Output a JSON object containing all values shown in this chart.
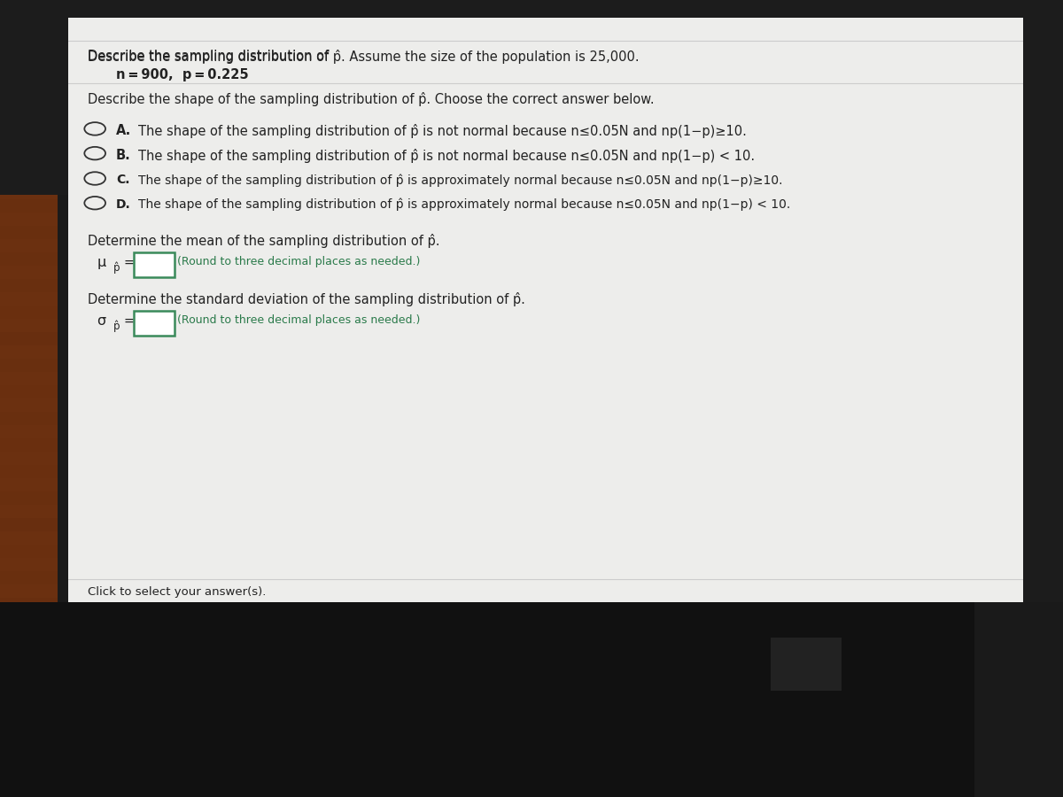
{
  "title_text1": "Describe the sampling distribution of ",
  "title_phat": "p̂",
  "title_text2": ". Assume the size of the population is 25,000.",
  "params": "n = 900, p = 0.225",
  "question_text1": "Describe the shape of the sampling distribution of ",
  "question_phat": "p̂",
  "question_text2": ". Choose the correct answer below.",
  "options": [
    {
      "label": "A.",
      "text1": "The shape of the sampling distribution of ",
      "phat": "p̂",
      "text2": " is not normal because n≤0.05N and np(1−p)≥10."
    },
    {
      "label": "B.",
      "text1": "The shape of the sampling distribution of ",
      "phat": "p̂",
      "text2": " is not normal because n≤0.05N and np(1−p) < 10."
    },
    {
      "label": "C.",
      "text1": "The shape of the sampling distribution of ",
      "phat": "p̂",
      "text2": " is approximately normal because n≤0.05N and np(1−p)≥10."
    },
    {
      "label": "D.",
      "text1": "The shape of the sampling distribution of ",
      "phat": "p̂",
      "text2": " is approximately normal because n≤0.05N and np(1−p) < 10."
    }
  ],
  "mean_text1": "Determine the mean of the sampling distribution of ",
  "mean_phat": "p̂",
  "mean_eq": "μ",
  "mean_sub": "p̂",
  "std_text1": "Determine the standard deviation of the sampling distribution of ",
  "std_phat": "p̂",
  "std_eq": "σ",
  "std_sub": "p̂",
  "round_text": "(Round to three decimal places as needed.)",
  "footer": "Click to select your answer(s).",
  "bg_screen": "#ededeb",
  "bg_outer_left": "#5a2a0a",
  "bg_outer_dark": "#1a1a1a",
  "text_color": "#222222",
  "option_label_color": "#111111",
  "input_box_border": "#3a8a5a",
  "round_text_color": "#2a7a4a",
  "line_color": "#cccccc",
  "bezel_color": "#111111"
}
